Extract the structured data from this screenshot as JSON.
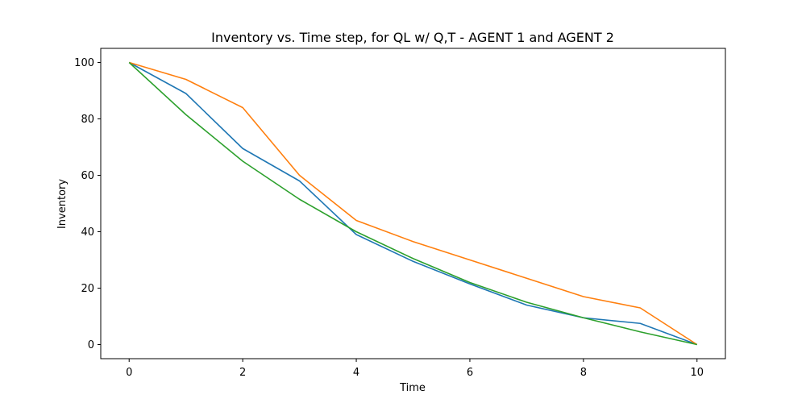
{
  "chart_data": {
    "type": "line",
    "title": "Inventory vs. Time step, for QL w/ Q,T - AGENT 1  and AGENT 2",
    "xlabel": "Time",
    "ylabel": "Inventory",
    "xlim": [
      -0.5,
      10.5
    ],
    "ylim": [
      -5,
      105
    ],
    "xticks": [
      0,
      2,
      4,
      6,
      8,
      10
    ],
    "yticks": [
      0,
      20,
      40,
      60,
      80,
      100
    ],
    "grid": false,
    "x": [
      0,
      1,
      2,
      3,
      4,
      5,
      6,
      7,
      8,
      9,
      10
    ],
    "series": [
      {
        "color": "#1f77b4",
        "values": [
          100,
          89,
          69.5,
          58,
          39,
          29.5,
          21.5,
          14,
          9.5,
          7.5,
          0
        ]
      },
      {
        "color": "#ff7f0e",
        "values": [
          100,
          94,
          84,
          60,
          44,
          36.5,
          30,
          23.5,
          17,
          13,
          0
        ]
      },
      {
        "color": "#2ca02c",
        "values": [
          100,
          81.5,
          65,
          51.5,
          40,
          30.5,
          22,
          15,
          9.5,
          4.5,
          0
        ]
      }
    ]
  }
}
